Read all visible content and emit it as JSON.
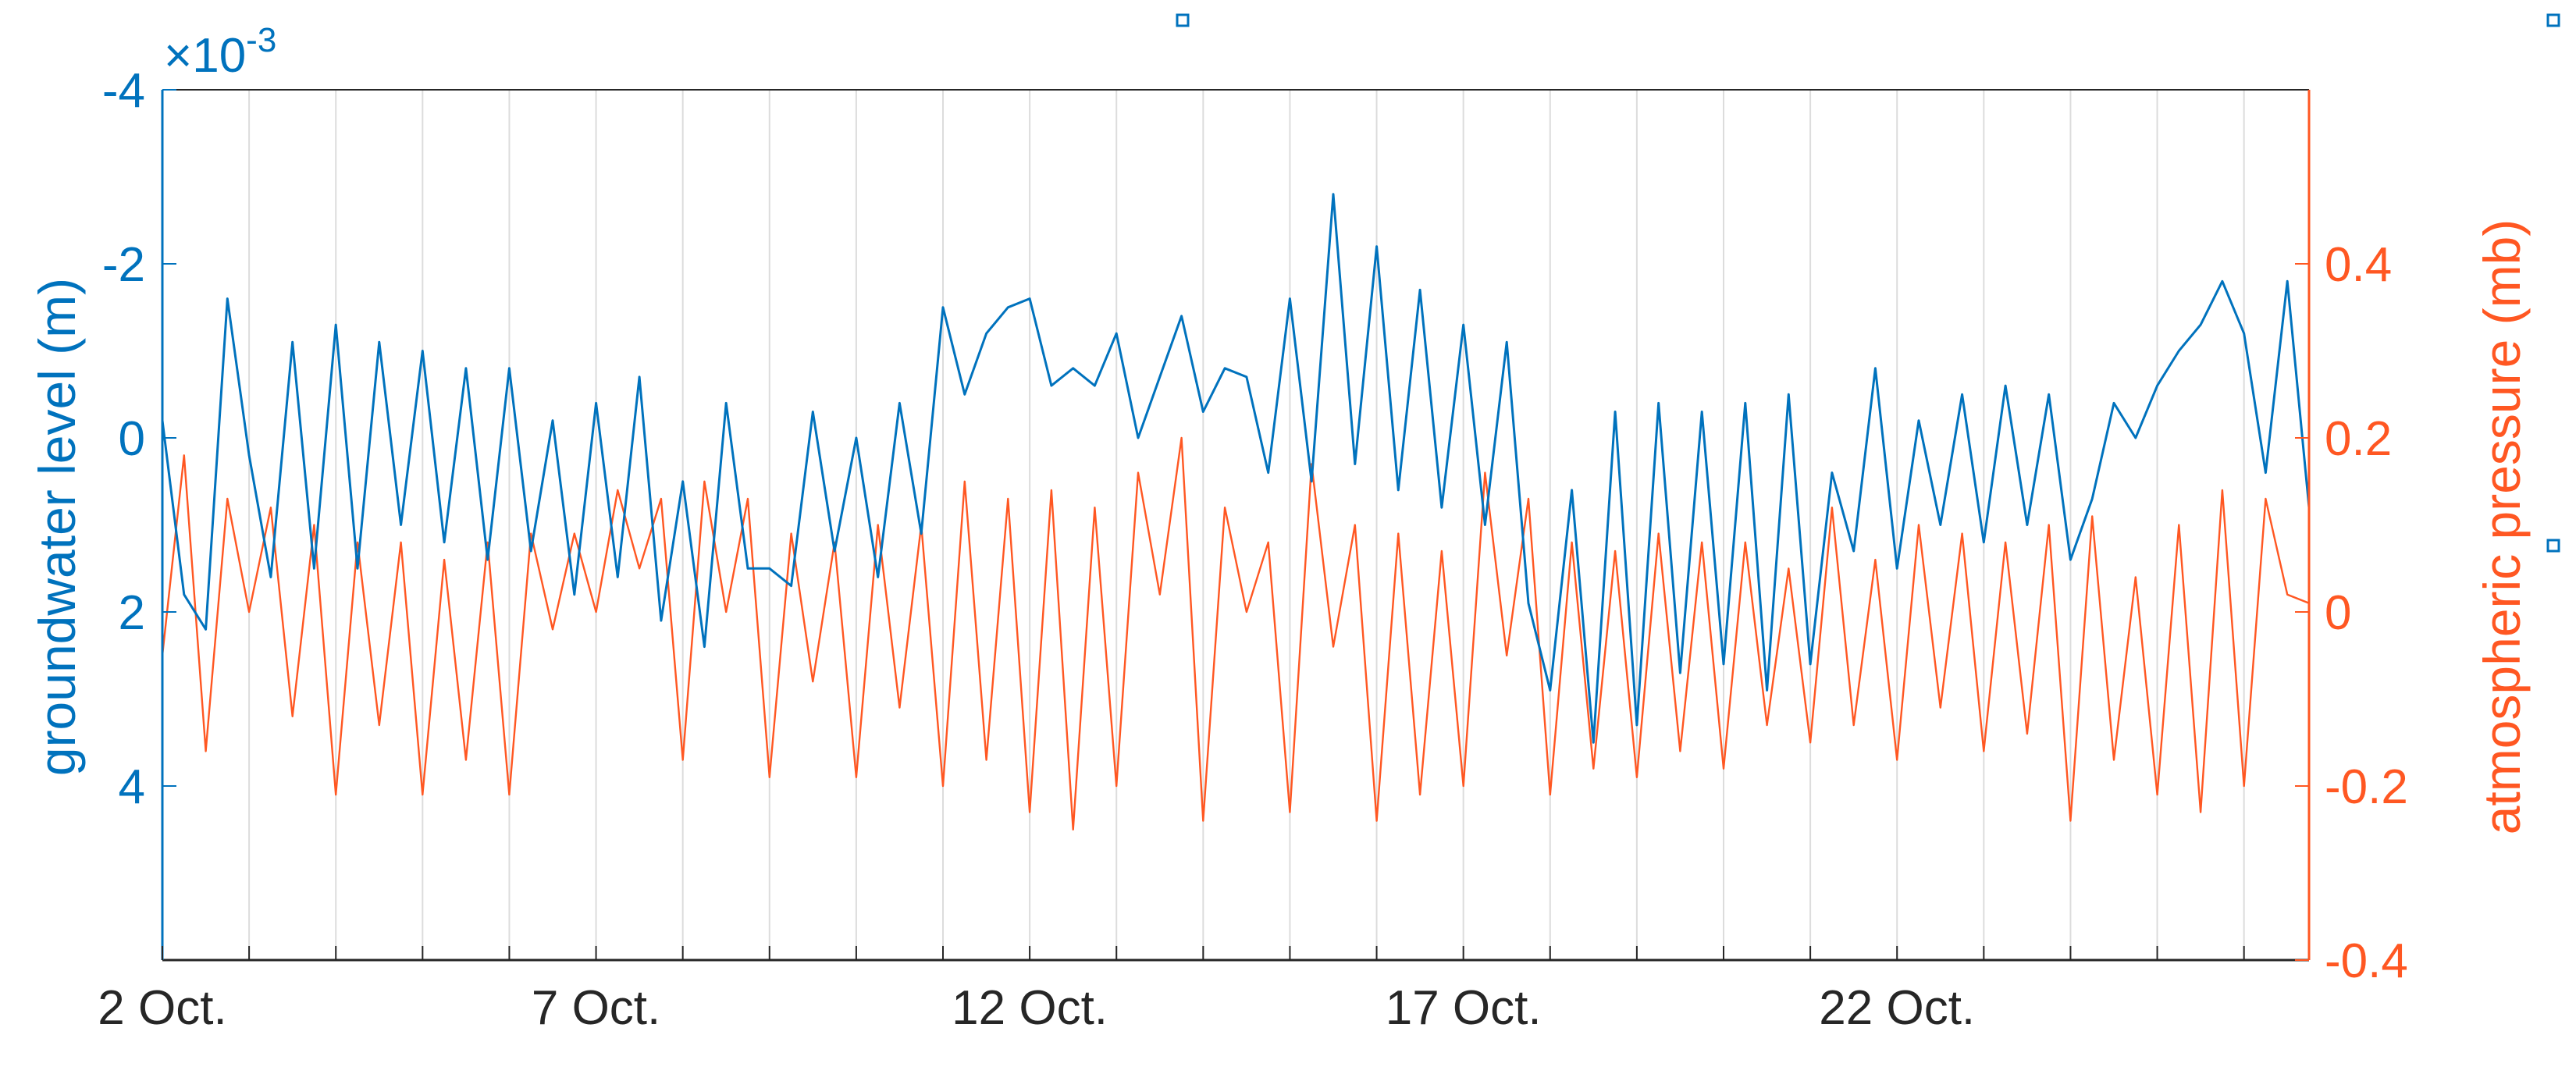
{
  "chart_data": {
    "type": "line",
    "title": "",
    "colors": {
      "left": "#0072BD",
      "right": "#FF5722",
      "grid": "#DCDCDC",
      "frame": "#262626"
    },
    "x": {
      "label": "",
      "range": [
        "2 Oct.",
        "26 Oct."
      ],
      "ticks": [
        "2 Oct.",
        "7 Oct.",
        "12 Oct.",
        "17 Oct.",
        "22 Oct."
      ],
      "grid": "daily vertical lines"
    },
    "y_left": {
      "label": "groundwater level (m)",
      "exponent_label": "×10",
      "exponent_power": "-3",
      "reversed": true,
      "range": [
        -4,
        6
      ],
      "ticks": [
        "-4",
        "-2",
        "0",
        "2",
        "4"
      ]
    },
    "y_right": {
      "label": "atmospheric pressure (mb)",
      "range": [
        -0.4,
        0.6
      ],
      "ticks": [
        "0.4",
        "0.2",
        "0",
        "-0.2",
        "-0.4"
      ]
    },
    "series": [
      {
        "axis": "left",
        "color": "#0072BD",
        "x_days": [
          0.0,
          0.25,
          0.5,
          0.75,
          1.0,
          1.25,
          1.5,
          1.75,
          2.0,
          2.25,
          2.5,
          2.75,
          3.0,
          3.25,
          3.5,
          3.75,
          4.0,
          4.25,
          4.5,
          4.75,
          5.0,
          5.25,
          5.5,
          5.75,
          6.0,
          6.25,
          6.5,
          6.75,
          7.0,
          7.25,
          7.5,
          7.75,
          8.0,
          8.25,
          8.5,
          8.75,
          9.0,
          9.25,
          9.5,
          9.75,
          10.0,
          10.25,
          10.5,
          10.75,
          11.0,
          11.25,
          11.5,
          11.75,
          12.0,
          12.25,
          12.5,
          12.75,
          13.0,
          13.25,
          13.5,
          13.75,
          14.0,
          14.25,
          14.5,
          14.75,
          15.0,
          15.25,
          15.5,
          15.75,
          16.0,
          16.25,
          16.5,
          16.75,
          17.0,
          17.25,
          17.5,
          17.75,
          18.0,
          18.25,
          18.5,
          18.75,
          19.0,
          19.25,
          19.5,
          19.75,
          20.0,
          20.25,
          20.5,
          20.75,
          21.0,
          21.25,
          21.5,
          21.75,
          22.0,
          22.25,
          22.5,
          22.75,
          23.0,
          23.25,
          23.5,
          23.75,
          24.0,
          24.25,
          24.5,
          24.75
        ],
        "values": [
          -0.2,
          1.8,
          2.2,
          -1.6,
          0.2,
          1.6,
          -1.1,
          1.5,
          -1.3,
          1.5,
          -1.1,
          1.0,
          -1.0,
          1.2,
          -0.8,
          1.4,
          -0.8,
          1.3,
          -0.2,
          1.8,
          -0.4,
          1.6,
          -0.7,
          2.1,
          0.5,
          2.4,
          -0.4,
          1.5,
          1.5,
          1.7,
          -0.3,
          1.3,
          0.0,
          1.6,
          -0.4,
          1.1,
          -1.5,
          -0.5,
          -1.2,
          -1.5,
          -1.6,
          -0.6,
          -0.8,
          -0.6,
          -1.2,
          0.0,
          -0.7,
          -1.4,
          -0.3,
          -0.8,
          -0.7,
          0.4,
          -1.6,
          0.5,
          -2.8,
          0.3,
          -2.2,
          0.6,
          -1.7,
          0.8,
          -1.3,
          1.0,
          -1.1,
          1.9,
          2.9,
          0.6,
          3.5,
          -0.3,
          3.3,
          -0.4,
          2.7,
          -0.3,
          2.6,
          -0.4,
          2.9,
          -0.5,
          2.6,
          0.4,
          1.3,
          -0.8,
          1.5,
          -0.2,
          1.0,
          -0.5,
          1.2,
          -0.6,
          1.0,
          -0.5,
          1.4,
          0.7,
          -0.4,
          0.0,
          -0.6,
          -1.0,
          -1.3,
          -1.8,
          -1.2,
          0.4,
          -1.8,
          0.8
        ]
      },
      {
        "axis": "right",
        "color": "#FF5722",
        "x_days": [
          0.0,
          0.25,
          0.5,
          0.75,
          1.0,
          1.25,
          1.5,
          1.75,
          2.0,
          2.25,
          2.5,
          2.75,
          3.0,
          3.25,
          3.5,
          3.75,
          4.0,
          4.25,
          4.5,
          4.75,
          5.0,
          5.25,
          5.5,
          5.75,
          6.0,
          6.25,
          6.5,
          6.75,
          7.0,
          7.25,
          7.5,
          7.75,
          8.0,
          8.25,
          8.5,
          8.75,
          9.0,
          9.25,
          9.5,
          9.75,
          10.0,
          10.25,
          10.5,
          10.75,
          11.0,
          11.25,
          11.5,
          11.75,
          12.0,
          12.25,
          12.5,
          12.75,
          13.0,
          13.25,
          13.5,
          13.75,
          14.0,
          14.25,
          14.5,
          14.75,
          15.0,
          15.25,
          15.5,
          15.75,
          16.0,
          16.25,
          16.5,
          16.75,
          17.0,
          17.25,
          17.5,
          17.75,
          18.0,
          18.25,
          18.5,
          18.75,
          19.0,
          19.25,
          19.5,
          19.75,
          20.0,
          20.25,
          20.5,
          20.75,
          21.0,
          21.25,
          21.5,
          21.75,
          22.0,
          22.25,
          22.5,
          22.75,
          23.0,
          23.25,
          23.5,
          23.75,
          24.0,
          24.25,
          24.5,
          24.75
        ],
        "values": [
          -0.05,
          0.18,
          -0.16,
          0.13,
          0.0,
          0.12,
          -0.12,
          0.1,
          -0.21,
          0.08,
          -0.13,
          0.08,
          -0.21,
          0.06,
          -0.17,
          0.08,
          -0.21,
          0.09,
          -0.02,
          0.09,
          0.0,
          0.14,
          0.05,
          0.13,
          -0.17,
          0.15,
          0.0,
          0.13,
          -0.19,
          0.09,
          -0.08,
          0.08,
          -0.19,
          0.1,
          -0.11,
          0.1,
          -0.2,
          0.15,
          -0.17,
          0.13,
          -0.23,
          0.14,
          -0.25,
          0.12,
          -0.2,
          0.16,
          0.02,
          0.2,
          -0.24,
          0.12,
          0.0,
          0.08,
          -0.23,
          0.17,
          -0.04,
          0.1,
          -0.24,
          0.09,
          -0.21,
          0.07,
          -0.2,
          0.16,
          -0.05,
          0.13,
          -0.21,
          0.08,
          -0.18,
          0.07,
          -0.19,
          0.09,
          -0.16,
          0.08,
          -0.18,
          0.08,
          -0.13,
          0.05,
          -0.15,
          0.12,
          -0.13,
          0.06,
          -0.17,
          0.1,
          -0.11,
          0.09,
          -0.16,
          0.08,
          -0.14,
          0.1,
          -0.24,
          0.11,
          -0.17,
          0.04,
          -0.21,
          0.1,
          -0.23,
          0.14,
          -0.2,
          0.13,
          0.02,
          0.01
        ]
      }
    ]
  }
}
